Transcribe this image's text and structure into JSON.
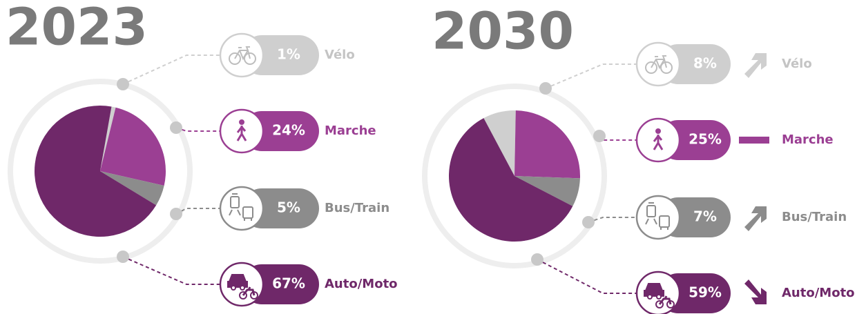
{
  "chart_data": [
    {
      "type": "pie",
      "title": "2023",
      "categories": [
        "Vélo",
        "Marche",
        "Bus/Train",
        "Auto/Moto"
      ],
      "values": [
        1,
        24,
        5,
        67
      ],
      "value_labels": [
        "1%",
        "24%",
        "5%",
        "67%"
      ],
      "colors": [
        "#cfcfcf",
        "#9b3f93",
        "#8c8c8c",
        "#6f2869"
      ]
    },
    {
      "type": "pie",
      "title": "2030",
      "categories": [
        "Vélo",
        "Marche",
        "Bus/Train",
        "Auto/Moto"
      ],
      "values": [
        8,
        25,
        7,
        59
      ],
      "value_labels": [
        "8%",
        "25%",
        "7%",
        "59%"
      ],
      "colors": [
        "#cfcfcf",
        "#9b3f93",
        "#8c8c8c",
        "#6f2869"
      ],
      "trend": [
        "up",
        "flat",
        "up",
        "down"
      ]
    }
  ]
}
